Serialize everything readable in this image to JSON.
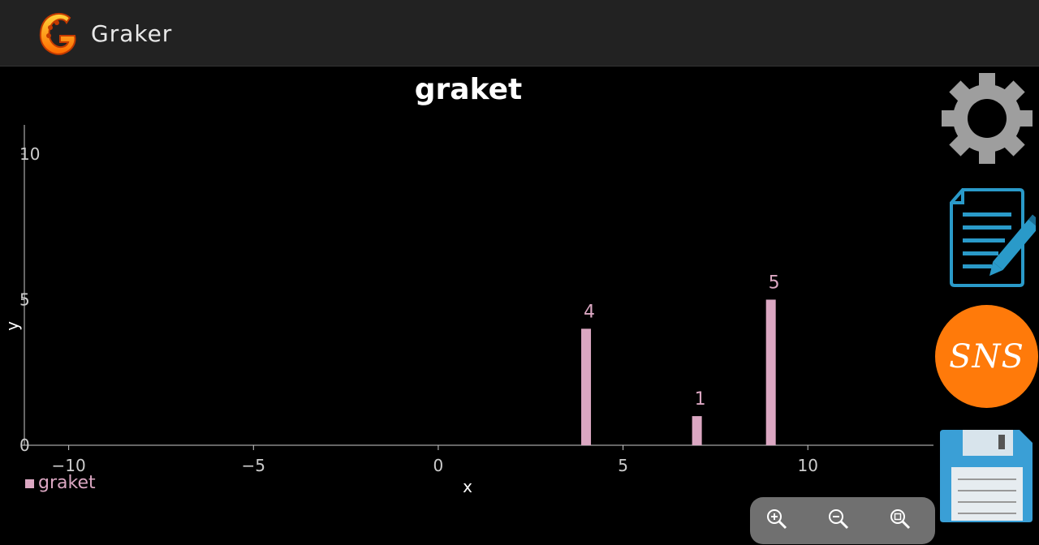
{
  "app": {
    "title": "Graker"
  },
  "icons": {
    "logo": "graker-logo-icon",
    "settings": "gear-icon",
    "edit": "document-edit-icon",
    "sns": "sns-icon",
    "save": "floppy-disk-icon",
    "zoom_in": "zoom-in-icon",
    "zoom_out": "zoom-out-icon",
    "zoom_reset": "zoom-reset-icon"
  },
  "sns_button": {
    "label": "SNS"
  },
  "colors": {
    "bar": "#dba7c2",
    "axis": "#cccccc",
    "sns": "#ff7a0a",
    "gear": "#9e9e9e",
    "doc": "#2a9ac9",
    "floppy": "#3a9fd6"
  },
  "chart_data": {
    "type": "bar",
    "title": "graket",
    "xlabel": "x",
    "ylabel": "y",
    "xlim": [
      -11.2,
      13.4
    ],
    "ylim": [
      0,
      11
    ],
    "xticks": [
      -10,
      -5,
      0,
      5,
      10
    ],
    "yticks": [
      0,
      5,
      10
    ],
    "grid": false,
    "legend": "bottom-left",
    "series": [
      {
        "name": "graket",
        "x": [
          4,
          7,
          9
        ],
        "values": [
          4,
          1,
          5
        ]
      }
    ]
  }
}
